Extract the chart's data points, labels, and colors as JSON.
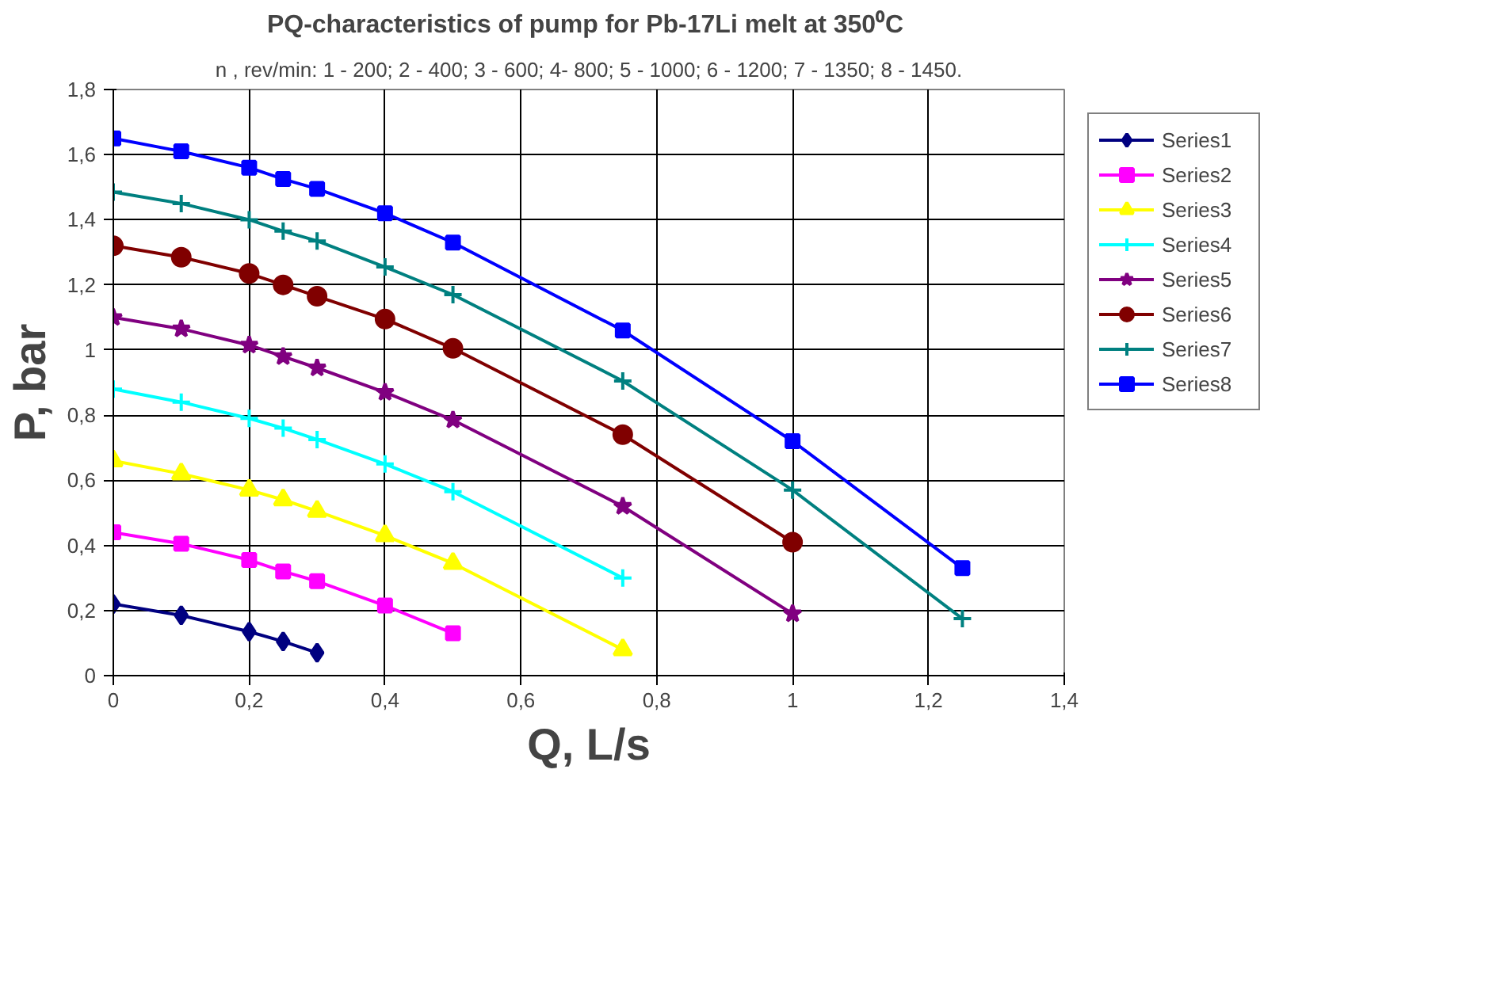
{
  "chart_data": {
    "type": "line",
    "title": "PQ-characteristics of pump for Pb-17Li melt  at 350⁰C",
    "subtitle": "n , rev/min: 1 - 200; 2 - 400; 3 - 600; 4- 800; 5 - 1000; 6 - 1200; 7 - 1350; 8 - 1450.",
    "xlabel": "Q, L/s",
    "ylabel": "P, bar",
    "xlim": [
      0,
      1.4
    ],
    "ylim": [
      0,
      1.8
    ],
    "xticks": [
      0,
      {
        "value": 0.2,
        "label": "0,2"
      },
      {
        "value": 0.4,
        "label": "0,4"
      },
      {
        "value": 0.6,
        "label": "0,6"
      },
      {
        "value": 0.8,
        "label": "0,8"
      },
      1,
      {
        "value": 1.2,
        "label": "1,2"
      },
      {
        "value": 1.4,
        "label": "1,4"
      }
    ],
    "yticks": [
      0,
      {
        "value": 0.2,
        "label": "0,2"
      },
      {
        "value": 0.4,
        "label": "0,4"
      },
      {
        "value": 0.6,
        "label": "0,6"
      },
      {
        "value": 0.8,
        "label": "0,8"
      },
      1,
      {
        "value": 1.2,
        "label": "1,2"
      },
      {
        "value": 1.4,
        "label": "1,4"
      },
      {
        "value": 1.6,
        "label": "1,6"
      },
      {
        "value": 1.8,
        "label": "1,8"
      }
    ],
    "grid": true,
    "legend": "right",
    "series": [
      {
        "name": "Series1",
        "color": "#000080",
        "marker": "diamond",
        "x": [
          0,
          0.1,
          0.2,
          0.25,
          0.3
        ],
        "values": [
          0.22,
          0.185,
          0.135,
          0.105,
          0.07
        ]
      },
      {
        "name": "Series2",
        "color": "#ff00ff",
        "marker": "square",
        "x": [
          0,
          0.1,
          0.2,
          0.25,
          0.3,
          0.4,
          0.5
        ],
        "values": [
          0.44,
          0.405,
          0.355,
          0.32,
          0.29,
          0.215,
          0.13
        ]
      },
      {
        "name": "Series3",
        "color": "#ffff00",
        "marker": "triangle",
        "x": [
          0,
          0.1,
          0.2,
          0.25,
          0.3,
          0.4,
          0.5,
          0.75
        ],
        "values": [
          0.66,
          0.62,
          0.57,
          0.54,
          0.505,
          0.43,
          0.345,
          0.08
        ]
      },
      {
        "name": "Series4",
        "color": "#00ffff",
        "marker": "cross",
        "x": [
          0,
          0.1,
          0.2,
          0.25,
          0.3,
          0.4,
          0.5,
          0.75
        ],
        "values": [
          0.88,
          0.84,
          0.79,
          0.76,
          0.725,
          0.65,
          0.565,
          0.3
        ]
      },
      {
        "name": "Series5",
        "color": "#800080",
        "marker": "star",
        "x": [
          0,
          0.1,
          0.2,
          0.25,
          0.3,
          0.4,
          0.5,
          0.75,
          1
        ],
        "values": [
          1.1,
          1.065,
          1.015,
          0.98,
          0.945,
          0.87,
          0.785,
          0.52,
          0.19
        ]
      },
      {
        "name": "Series6",
        "color": "#800000",
        "marker": "circle",
        "x": [
          0,
          0.1,
          0.2,
          0.25,
          0.3,
          0.4,
          0.5,
          0.75,
          1
        ],
        "values": [
          1.32,
          1.285,
          1.235,
          1.2,
          1.165,
          1.095,
          1.005,
          0.74,
          0.41
        ]
      },
      {
        "name": "Series7",
        "color": "#008080",
        "marker": "cross",
        "x": [
          0,
          0.1,
          0.2,
          0.25,
          0.3,
          0.4,
          0.5,
          0.75,
          1,
          1.25
        ],
        "values": [
          1.485,
          1.45,
          1.4,
          1.365,
          1.335,
          1.255,
          1.17,
          0.905,
          0.57,
          0.175
        ]
      },
      {
        "name": "Series8",
        "color": "#0000ff",
        "marker": "square",
        "x": [
          0,
          0.1,
          0.2,
          0.25,
          0.3,
          0.4,
          0.5,
          0.75,
          1,
          1.25
        ],
        "values": [
          1.65,
          1.61,
          1.56,
          1.525,
          1.495,
          1.42,
          1.33,
          1.06,
          0.72,
          0.33
        ]
      }
    ]
  }
}
